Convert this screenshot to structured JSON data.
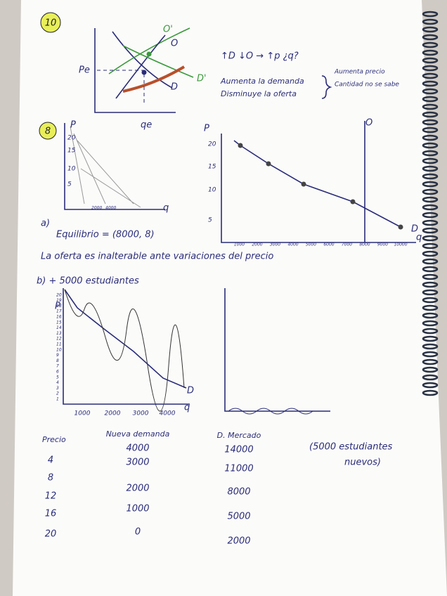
{
  "problem_10": {
    "number": "10",
    "labels": {
      "price": "Pe",
      "quantity": "qe",
      "supply": "O",
      "supply_new": "O'",
      "demand": "D",
      "demand_new": "D'"
    },
    "notes": {
      "arrows": "↑D ↓O → ↑p ¿q?",
      "line1": "Aumenta la demanda",
      "line2": "Disminuye la oferta",
      "result1": "Aumenta precio",
      "result2": "Cantidad no se sabe"
    }
  },
  "problem_8": {
    "number": "8",
    "small_graph": {
      "y_label": "P",
      "x_label": "q",
      "yticks": [
        "20",
        "15",
        "10",
        "5"
      ],
      "xticks": [
        "2000",
        "4000"
      ]
    },
    "graph": {
      "y_label": "P",
      "x_label": "q",
      "supply": "O",
      "demand": "D",
      "yticks": [
        "20",
        "15",
        "10",
        "5"
      ],
      "xticks": [
        "1000",
        "2000",
        "3000",
        "4000",
        "5000",
        "6000",
        "7000",
        "8000",
        "9000",
        "10000"
      ]
    },
    "a": {
      "label": "a)",
      "equilibrium": "Equilibrio = (8000, 8)",
      "note": "La oferta es inalterable ante variaciones del precio"
    },
    "b": {
      "label": "b) + 5000 estudiantes",
      "graph": {
        "y_label": "P",
        "x_label": "q",
        "demand": "D",
        "yticks": [
          "1",
          "2",
          "3",
          "4",
          "5",
          "6",
          "7",
          "8",
          "9",
          "10",
          "11",
          "12",
          "13",
          "14",
          "15",
          "16",
          "17",
          "18",
          "19",
          "20"
        ],
        "xticks": [
          "1000",
          "2000",
          "3000",
          "4000"
        ]
      },
      "table": {
        "headers": [
          "Precio",
          "Nueva demanda",
          "D. Mercado"
        ],
        "rows": [
          [
            "4",
            "4000",
            "14000"
          ],
          [
            "8",
            "3000",
            "11000"
          ],
          [
            "12",
            "2000",
            "8000"
          ],
          [
            "16",
            "1000",
            "5000"
          ],
          [
            "20",
            "0",
            "2000"
          ]
        ]
      },
      "note": [
        "(5000 estudiantes",
        "nuevos)"
      ]
    }
  }
}
